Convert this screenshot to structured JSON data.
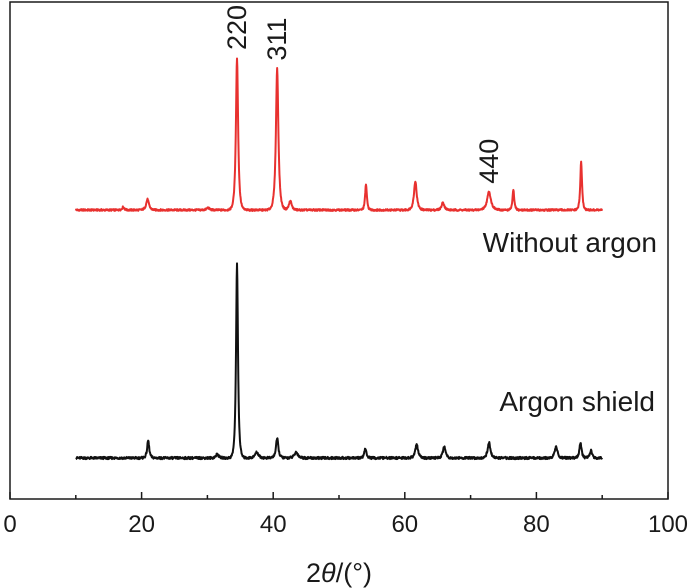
{
  "chart_data": {
    "type": "line",
    "title": "",
    "xlabel": {
      "prefix": "2",
      "italic": "θ",
      "suffix": "/(°)"
    },
    "ylabel": "",
    "xlim": [
      0,
      100
    ],
    "xticks": [
      "0",
      "20",
      "40",
      "60",
      "80",
      "100"
    ],
    "y_axis": "none",
    "grid": false,
    "series": [
      {
        "name": "Without argon",
        "color": "#e8312f",
        "baseline": 0.0,
        "peaks": [
          {
            "x": 17.2,
            "h": 0.02,
            "w": 0.3
          },
          {
            "x": 20.9,
            "h": 0.07,
            "w": 0.4
          },
          {
            "x": 30.1,
            "h": 0.015,
            "w": 0.4
          },
          {
            "x": 34.5,
            "h": 1.0,
            "w": 0.32,
            "label": "220"
          },
          {
            "x": 40.6,
            "h": 0.93,
            "w": 0.36,
            "label": "311"
          },
          {
            "x": 42.6,
            "h": 0.06,
            "w": 0.4
          },
          {
            "x": 54.1,
            "h": 0.17,
            "w": 0.25
          },
          {
            "x": 61.6,
            "h": 0.19,
            "w": 0.4
          },
          {
            "x": 65.8,
            "h": 0.05,
            "w": 0.4
          },
          {
            "x": 72.8,
            "h": 0.12,
            "w": 0.55,
            "label": "440"
          },
          {
            "x": 76.5,
            "h": 0.13,
            "w": 0.25
          },
          {
            "x": 86.8,
            "h": 0.32,
            "w": 0.25
          }
        ],
        "x_range": [
          10,
          90
        ]
      },
      {
        "name": "Argon shield",
        "color": "#111111",
        "baseline": 0.0,
        "peaks": [
          {
            "x": 21.0,
            "h": 0.09,
            "w": 0.3
          },
          {
            "x": 31.5,
            "h": 0.02,
            "w": 0.4
          },
          {
            "x": 34.5,
            "h": 1.0,
            "w": 0.28
          },
          {
            "x": 37.5,
            "h": 0.03,
            "w": 0.5
          },
          {
            "x": 40.6,
            "h": 0.1,
            "w": 0.35
          },
          {
            "x": 43.5,
            "h": 0.03,
            "w": 0.5
          },
          {
            "x": 54.0,
            "h": 0.05,
            "w": 0.3
          },
          {
            "x": 61.8,
            "h": 0.07,
            "w": 0.4
          },
          {
            "x": 66.0,
            "h": 0.06,
            "w": 0.4
          },
          {
            "x": 72.8,
            "h": 0.08,
            "w": 0.4
          },
          {
            "x": 83.0,
            "h": 0.06,
            "w": 0.4
          },
          {
            "x": 86.7,
            "h": 0.08,
            "w": 0.3
          },
          {
            "x": 88.3,
            "h": 0.04,
            "w": 0.3
          }
        ],
        "x_range": [
          10,
          90
        ]
      }
    ]
  }
}
